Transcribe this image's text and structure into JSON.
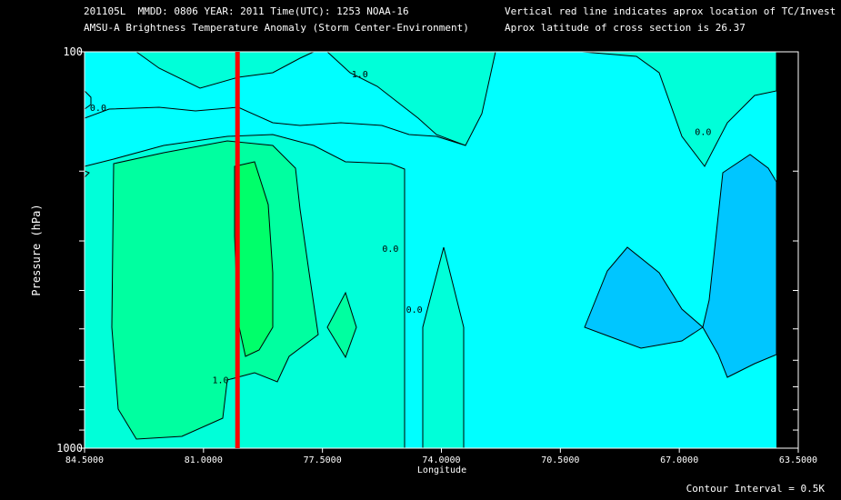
{
  "header": {
    "line1": "201105L  MMDD: 0806 YEAR: 2011 Time(UTC): 1253 NOAA-16",
    "line2": "AMSU-A Brightness Temperature Anomaly (Storm Center-Environment)",
    "line3": "Vertical red line indicates aprox location of TC/Invest",
    "line4": "Aprox latitude of cross section is 26.37"
  },
  "contour_interval": "Contour Interval = 0.5K",
  "colors": {
    "background": "#000000",
    "cyan": "#00FFFF",
    "aqua": "#00FFD9",
    "green": "#00FFA0",
    "bright_green": "#00FF6A",
    "blue": "#00C6FF",
    "storm_line": "#FF0000"
  },
  "chart_data": {
    "type": "contour",
    "xlabel": "Longitude",
    "ylabel": "Pressure (hPa)",
    "x_ticks": [
      "84.5000",
      "81.0000",
      "77.5000",
      "74.0000",
      "70.5000",
      "67.0000",
      "63.5000"
    ],
    "x_tick_values": [
      84.5,
      81.0,
      77.5,
      74.0,
      70.5,
      67.0,
      63.5
    ],
    "y_ticks": [
      "100",
      "1000"
    ],
    "y_tick_values": [
      100,
      1000
    ],
    "y_scale": "log",
    "xlim": [
      84.5,
      63.5
    ],
    "ylim": [
      1000,
      100
    ],
    "storm_longitude": 80.0,
    "latitude": 26.37,
    "contour_labels": [
      {
        "text": "1.0",
        "lon": 76.4,
        "p": 116
      },
      {
        "text": "0.0",
        "lon": 84.1,
        "p": 141
      },
      {
        "text": "0.0",
        "lon": 75.5,
        "p": 320
      },
      {
        "text": "0.0",
        "lon": 74.8,
        "p": 455
      },
      {
        "text": "1.0",
        "lon": 80.5,
        "p": 685
      },
      {
        "text": "0.0",
        "lon": 66.3,
        "p": 162
      }
    ]
  }
}
